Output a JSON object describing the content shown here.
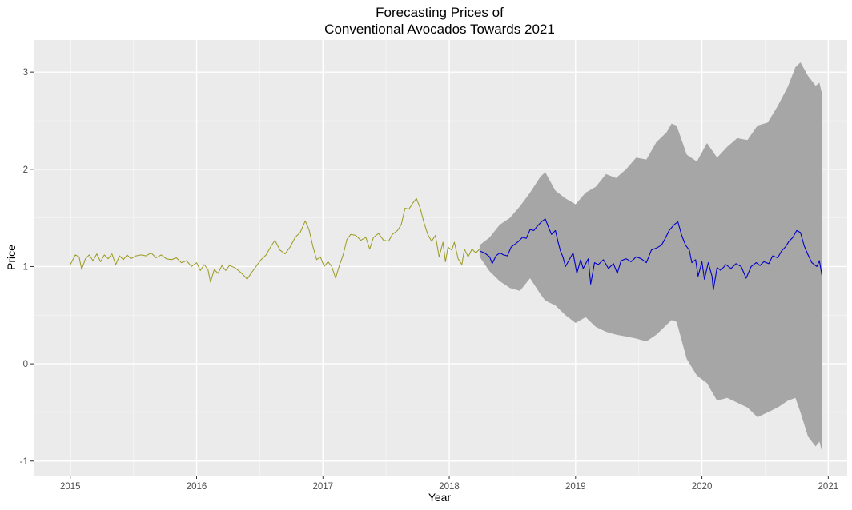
{
  "chart_data": {
    "type": "line",
    "title_line1": "Forecasting Prices of",
    "title_line2": "Conventional Avocados Towards 2021",
    "xlabel": "Year",
    "ylabel": "Price",
    "xlim": [
      2014.71,
      2021.15
    ],
    "ylim": [
      -1.15,
      3.33
    ],
    "x_ticks": [
      2015,
      2016,
      2017,
      2018,
      2019,
      2020,
      2021
    ],
    "x_tick_labels": [
      "2015",
      "2016",
      "2017",
      "2018",
      "2019",
      "2020",
      "2021"
    ],
    "y_ticks": [
      -1,
      0,
      1,
      2,
      3
    ],
    "y_tick_labels": [
      "-1",
      "0",
      "1",
      "2",
      "3"
    ],
    "grid": true,
    "legend": "none",
    "colors": {
      "panel": "#ebebeb",
      "grid_major": "#ffffff",
      "grid_minor": "#f5f5f5",
      "history": "#9a9a20",
      "forecast": "#0000cc",
      "interval": "#a6a6a6"
    },
    "series": [
      {
        "role": "history",
        "points": [
          [
            2015.0,
            1.02
          ],
          [
            2015.04,
            1.12
          ],
          [
            2015.07,
            1.1
          ],
          [
            2015.09,
            0.97
          ],
          [
            2015.12,
            1.08
          ],
          [
            2015.15,
            1.12
          ],
          [
            2015.18,
            1.06
          ],
          [
            2015.21,
            1.13
          ],
          [
            2015.24,
            1.05
          ],
          [
            2015.27,
            1.12
          ],
          [
            2015.3,
            1.08
          ],
          [
            2015.33,
            1.13
          ],
          [
            2015.36,
            1.02
          ],
          [
            2015.39,
            1.11
          ],
          [
            2015.42,
            1.07
          ],
          [
            2015.45,
            1.12
          ],
          [
            2015.48,
            1.08
          ],
          [
            2015.52,
            1.11
          ],
          [
            2015.56,
            1.12
          ],
          [
            2015.6,
            1.11
          ],
          [
            2015.64,
            1.14
          ],
          [
            2015.68,
            1.09
          ],
          [
            2015.72,
            1.12
          ],
          [
            2015.76,
            1.08
          ],
          [
            2015.8,
            1.07
          ],
          [
            2015.84,
            1.09
          ],
          [
            2015.88,
            1.04
          ],
          [
            2015.92,
            1.06
          ],
          [
            2015.96,
            1.0
          ],
          [
            2016.0,
            1.04
          ],
          [
            2016.03,
            0.96
          ],
          [
            2016.06,
            1.02
          ],
          [
            2016.09,
            0.97
          ],
          [
            2016.11,
            0.84
          ],
          [
            2016.14,
            0.97
          ],
          [
            2016.17,
            0.93
          ],
          [
            2016.2,
            1.01
          ],
          [
            2016.23,
            0.96
          ],
          [
            2016.26,
            1.01
          ],
          [
            2016.3,
            0.99
          ],
          [
            2016.34,
            0.95
          ],
          [
            2016.38,
            0.9
          ],
          [
            2016.4,
            0.87
          ],
          [
            2016.43,
            0.93
          ],
          [
            2016.47,
            1.0
          ],
          [
            2016.51,
            1.07
          ],
          [
            2016.55,
            1.12
          ],
          [
            2016.59,
            1.21
          ],
          [
            2016.62,
            1.27
          ],
          [
            2016.66,
            1.17
          ],
          [
            2016.7,
            1.13
          ],
          [
            2016.74,
            1.2
          ],
          [
            2016.78,
            1.3
          ],
          [
            2016.82,
            1.35
          ],
          [
            2016.86,
            1.47
          ],
          [
            2016.89,
            1.38
          ],
          [
            2016.92,
            1.21
          ],
          [
            2016.95,
            1.07
          ],
          [
            2016.98,
            1.1
          ],
          [
            2017.01,
            1.0
          ],
          [
            2017.04,
            1.05
          ],
          [
            2017.07,
            1.0
          ],
          [
            2017.1,
            0.88
          ],
          [
            2017.13,
            1.01
          ],
          [
            2017.16,
            1.12
          ],
          [
            2017.19,
            1.28
          ],
          [
            2017.22,
            1.33
          ],
          [
            2017.26,
            1.32
          ],
          [
            2017.3,
            1.27
          ],
          [
            2017.34,
            1.3
          ],
          [
            2017.37,
            1.18
          ],
          [
            2017.4,
            1.3
          ],
          [
            2017.44,
            1.34
          ],
          [
            2017.48,
            1.27
          ],
          [
            2017.52,
            1.26
          ],
          [
            2017.55,
            1.33
          ],
          [
            2017.59,
            1.37
          ],
          [
            2017.62,
            1.43
          ],
          [
            2017.65,
            1.6
          ],
          [
            2017.68,
            1.59
          ],
          [
            2017.71,
            1.65
          ],
          [
            2017.74,
            1.7
          ],
          [
            2017.77,
            1.6
          ],
          [
            2017.8,
            1.45
          ],
          [
            2017.83,
            1.33
          ],
          [
            2017.86,
            1.26
          ],
          [
            2017.89,
            1.32
          ],
          [
            2017.92,
            1.1
          ],
          [
            2017.95,
            1.25
          ],
          [
            2017.97,
            1.05
          ],
          [
            2017.99,
            1.2
          ],
          [
            2018.02,
            1.17
          ],
          [
            2018.04,
            1.25
          ],
          [
            2018.07,
            1.08
          ],
          [
            2018.1,
            1.02
          ],
          [
            2018.12,
            1.18
          ],
          [
            2018.15,
            1.1
          ],
          [
            2018.18,
            1.18
          ],
          [
            2018.21,
            1.14
          ],
          [
            2018.24,
            1.18
          ]
        ]
      },
      {
        "role": "forecast",
        "points": [
          [
            2018.24,
            1.16
          ],
          [
            2018.28,
            1.14
          ],
          [
            2018.32,
            1.1
          ],
          [
            2018.34,
            1.03
          ],
          [
            2018.37,
            1.11
          ],
          [
            2018.4,
            1.14
          ],
          [
            2018.43,
            1.12
          ],
          [
            2018.46,
            1.11
          ],
          [
            2018.49,
            1.2
          ],
          [
            2018.52,
            1.23
          ],
          [
            2018.55,
            1.26
          ],
          [
            2018.58,
            1.3
          ],
          [
            2018.61,
            1.29
          ],
          [
            2018.64,
            1.38
          ],
          [
            2018.67,
            1.37
          ],
          [
            2018.7,
            1.42
          ],
          [
            2018.73,
            1.46
          ],
          [
            2018.76,
            1.49
          ],
          [
            2018.79,
            1.39
          ],
          [
            2018.81,
            1.33
          ],
          [
            2018.84,
            1.37
          ],
          [
            2018.86,
            1.26
          ],
          [
            2018.88,
            1.16
          ],
          [
            2018.9,
            1.1
          ],
          [
            2018.92,
            1.0
          ],
          [
            2018.95,
            1.07
          ],
          [
            2018.98,
            1.14
          ],
          [
            2019.01,
            0.93
          ],
          [
            2019.04,
            1.07
          ],
          [
            2019.06,
            0.98
          ],
          [
            2019.1,
            1.08
          ],
          [
            2019.12,
            0.82
          ],
          [
            2019.15,
            1.04
          ],
          [
            2019.18,
            1.02
          ],
          [
            2019.22,
            1.07
          ],
          [
            2019.26,
            0.98
          ],
          [
            2019.3,
            1.03
          ],
          [
            2019.33,
            0.93
          ],
          [
            2019.36,
            1.06
          ],
          [
            2019.4,
            1.08
          ],
          [
            2019.44,
            1.05
          ],
          [
            2019.48,
            1.1
          ],
          [
            2019.52,
            1.08
          ],
          [
            2019.56,
            1.04
          ],
          [
            2019.6,
            1.17
          ],
          [
            2019.64,
            1.19
          ],
          [
            2019.68,
            1.22
          ],
          [
            2019.71,
            1.29
          ],
          [
            2019.74,
            1.37
          ],
          [
            2019.78,
            1.43
          ],
          [
            2019.81,
            1.46
          ],
          [
            2019.84,
            1.32
          ],
          [
            2019.87,
            1.22
          ],
          [
            2019.9,
            1.17
          ],
          [
            2019.92,
            1.04
          ],
          [
            2019.95,
            1.07
          ],
          [
            2019.97,
            0.9
          ],
          [
            2020.0,
            1.05
          ],
          [
            2020.02,
            0.87
          ],
          [
            2020.05,
            1.04
          ],
          [
            2020.08,
            0.9
          ],
          [
            2020.09,
            0.76
          ],
          [
            2020.12,
            0.99
          ],
          [
            2020.15,
            0.96
          ],
          [
            2020.19,
            1.02
          ],
          [
            2020.23,
            0.98
          ],
          [
            2020.27,
            1.03
          ],
          [
            2020.31,
            1.0
          ],
          [
            2020.35,
            0.88
          ],
          [
            2020.39,
            1.0
          ],
          [
            2020.43,
            1.04
          ],
          [
            2020.46,
            1.01
          ],
          [
            2020.49,
            1.05
          ],
          [
            2020.53,
            1.03
          ],
          [
            2020.56,
            1.11
          ],
          [
            2020.6,
            1.09
          ],
          [
            2020.63,
            1.16
          ],
          [
            2020.66,
            1.2
          ],
          [
            2020.69,
            1.26
          ],
          [
            2020.72,
            1.3
          ],
          [
            2020.75,
            1.37
          ],
          [
            2020.78,
            1.35
          ],
          [
            2020.81,
            1.21
          ],
          [
            2020.84,
            1.12
          ],
          [
            2020.87,
            1.04
          ],
          [
            2020.89,
            1.02
          ],
          [
            2020.91,
            1.0
          ],
          [
            2020.93,
            1.06
          ],
          [
            2020.95,
            0.91
          ]
        ]
      },
      {
        "role": "interval",
        "x": [
          2018.24,
          2018.32,
          2018.4,
          2018.48,
          2018.56,
          2018.64,
          2018.72,
          2018.76,
          2018.84,
          2018.92,
          2019.0,
          2019.08,
          2019.16,
          2019.24,
          2019.32,
          2019.4,
          2019.48,
          2019.56,
          2019.64,
          2019.72,
          2019.76,
          2019.8,
          2019.88,
          2019.96,
          2020.04,
          2020.12,
          2020.2,
          2020.28,
          2020.36,
          2020.44,
          2020.52,
          2020.6,
          2020.68,
          2020.74,
          2020.78,
          2020.84,
          2020.9,
          2020.93,
          2020.95
        ],
        "upper": [
          1.22,
          1.3,
          1.43,
          1.5,
          1.62,
          1.76,
          1.92,
          1.97,
          1.78,
          1.7,
          1.64,
          1.76,
          1.82,
          1.95,
          1.91,
          2.0,
          2.12,
          2.1,
          2.28,
          2.38,
          2.47,
          2.45,
          2.15,
          2.08,
          2.27,
          2.12,
          2.23,
          2.32,
          2.3,
          2.45,
          2.48,
          2.65,
          2.85,
          3.05,
          3.1,
          2.96,
          2.86,
          2.89,
          2.78
        ],
        "lower": [
          1.1,
          0.95,
          0.85,
          0.78,
          0.75,
          0.88,
          0.72,
          0.65,
          0.6,
          0.5,
          0.42,
          0.48,
          0.38,
          0.33,
          0.3,
          0.28,
          0.26,
          0.23,
          0.3,
          0.4,
          0.45,
          0.43,
          0.05,
          -0.12,
          -0.2,
          -0.38,
          -0.35,
          -0.4,
          -0.45,
          -0.55,
          -0.5,
          -0.45,
          -0.38,
          -0.35,
          -0.5,
          -0.75,
          -0.85,
          -0.8,
          -0.9
        ]
      }
    ]
  }
}
